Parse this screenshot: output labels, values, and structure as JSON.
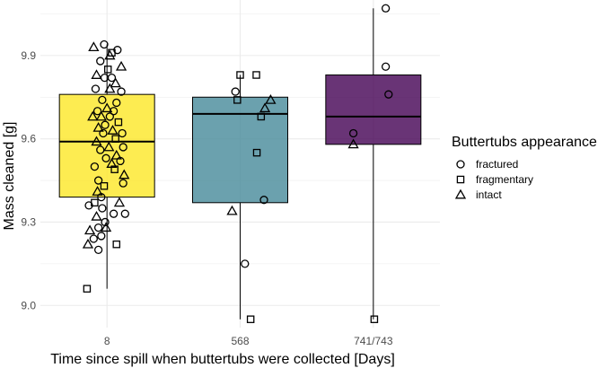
{
  "chart_data": {
    "type": "box",
    "title": "",
    "xlabel": "Time since spill when buttertubs were collected [Days]",
    "ylabel": "Mass cleaned [g]",
    "ylim": [
      8.92,
      10.1
    ],
    "y_ticks": [
      9.0,
      9.3,
      9.6,
      9.9
    ],
    "y_tick_labels": [
      "9.0",
      "9.3",
      "9.6",
      "9.9"
    ],
    "grid": true,
    "legend": {
      "title": "Buttertubs appearance",
      "position": "right",
      "entries": [
        {
          "label": "fractured",
          "shape": "circle"
        },
        {
          "label": "fragmentary",
          "shape": "square"
        },
        {
          "label": "intact",
          "shape": "triangle"
        }
      ]
    },
    "categories": [
      "8",
      "568",
      "741/743"
    ],
    "boxes": [
      {
        "category": "8",
        "color": "#FDE725",
        "q1": 9.39,
        "median": 9.59,
        "q3": 9.76,
        "whisker_low": 9.06,
        "whisker_high": 9.94
      },
      {
        "category": "568",
        "color": "#46899A",
        "q1": 9.37,
        "median": 9.69,
        "q3": 9.75,
        "whisker_low": 8.95,
        "whisker_high": 9.83
      },
      {
        "category": "741/743",
        "color": "#440154",
        "q1": 9.58,
        "median": 9.68,
        "q3": 9.83,
        "whisker_low": 8.95,
        "whisker_high": 10.07
      }
    ],
    "points": [
      {
        "category": "8",
        "jitter": -0.06,
        "y": 9.94,
        "shape": "circle"
      },
      {
        "category": "8",
        "jitter": -0.28,
        "y": 9.93,
        "shape": "triangle"
      },
      {
        "category": "8",
        "jitter": 0.22,
        "y": 9.92,
        "shape": "circle"
      },
      {
        "category": "8",
        "jitter": 0.1,
        "y": 9.91,
        "shape": "square"
      },
      {
        "category": "8",
        "jitter": 0.06,
        "y": 9.9,
        "shape": "triangle"
      },
      {
        "category": "8",
        "jitter": 0.3,
        "y": 9.86,
        "shape": "triangle"
      },
      {
        "category": "8",
        "jitter": -0.14,
        "y": 9.88,
        "shape": "circle"
      },
      {
        "category": "8",
        "jitter": 0.02,
        "y": 9.85,
        "shape": "square"
      },
      {
        "category": "8",
        "jitter": -0.22,
        "y": 9.83,
        "shape": "triangle"
      },
      {
        "category": "8",
        "jitter": -0.24,
        "y": 9.78,
        "shape": "circle"
      },
      {
        "category": "8",
        "jitter": 0.06,
        "y": 9.78,
        "shape": "triangle"
      },
      {
        "category": "8",
        "jitter": 0.1,
        "y": 9.82,
        "shape": "circle"
      },
      {
        "category": "8",
        "jitter": -0.05,
        "y": 9.82,
        "shape": "circle"
      },
      {
        "category": "8",
        "jitter": 0.18,
        "y": 9.8,
        "shape": "triangle"
      },
      {
        "category": "8",
        "jitter": 0.3,
        "y": 9.77,
        "shape": "circle"
      },
      {
        "category": "8",
        "jitter": -0.1,
        "y": 9.74,
        "shape": "circle"
      },
      {
        "category": "8",
        "jitter": 0.2,
        "y": 9.73,
        "shape": "circle"
      },
      {
        "category": "8",
        "jitter": -0.2,
        "y": 9.7,
        "shape": "circle"
      },
      {
        "category": "8",
        "jitter": 0.0,
        "y": 9.71,
        "shape": "triangle"
      },
      {
        "category": "8",
        "jitter": 0.14,
        "y": 9.7,
        "shape": "circle"
      },
      {
        "category": "8",
        "jitter": -0.3,
        "y": 9.68,
        "shape": "triangle"
      },
      {
        "category": "8",
        "jitter": -0.12,
        "y": 9.68,
        "shape": "triangle"
      },
      {
        "category": "8",
        "jitter": 0.06,
        "y": 9.68,
        "shape": "circle"
      },
      {
        "category": "8",
        "jitter": -0.04,
        "y": 9.65,
        "shape": "circle"
      },
      {
        "category": "8",
        "jitter": -0.18,
        "y": 9.64,
        "shape": "triangle"
      },
      {
        "category": "8",
        "jitter": 0.24,
        "y": 9.66,
        "shape": "square"
      },
      {
        "category": "8",
        "jitter": 0.32,
        "y": 9.62,
        "shape": "circle"
      },
      {
        "category": "8",
        "jitter": 0.12,
        "y": 9.63,
        "shape": "triangle"
      },
      {
        "category": "8",
        "jitter": -0.08,
        "y": 9.62,
        "shape": "circle"
      },
      {
        "category": "8",
        "jitter": 0.18,
        "y": 9.6,
        "shape": "square"
      },
      {
        "category": "8",
        "jitter": -0.22,
        "y": 9.59,
        "shape": "triangle"
      },
      {
        "category": "8",
        "jitter": 0.34,
        "y": 9.57,
        "shape": "circle"
      },
      {
        "category": "8",
        "jitter": 0.04,
        "y": 9.57,
        "shape": "triangle"
      },
      {
        "category": "8",
        "jitter": -0.14,
        "y": 9.56,
        "shape": "circle"
      },
      {
        "category": "8",
        "jitter": 0.2,
        "y": 9.54,
        "shape": "triangle"
      },
      {
        "category": "8",
        "jitter": -0.02,
        "y": 9.53,
        "shape": "circle"
      },
      {
        "category": "8",
        "jitter": 0.28,
        "y": 9.52,
        "shape": "circle"
      },
      {
        "category": "8",
        "jitter": 0.1,
        "y": 9.51,
        "shape": "triangle"
      },
      {
        "category": "8",
        "jitter": -0.26,
        "y": 9.5,
        "shape": "circle"
      },
      {
        "category": "8",
        "jitter": 0.16,
        "y": 9.49,
        "shape": "square"
      },
      {
        "category": "8",
        "jitter": 0.36,
        "y": 9.47,
        "shape": "triangle"
      },
      {
        "category": "8",
        "jitter": -0.18,
        "y": 9.45,
        "shape": "circle"
      },
      {
        "category": "8",
        "jitter": 0.34,
        "y": 9.44,
        "shape": "circle"
      },
      {
        "category": "8",
        "jitter": -0.06,
        "y": 9.43,
        "shape": "square"
      },
      {
        "category": "8",
        "jitter": -0.2,
        "y": 9.41,
        "shape": "triangle"
      },
      {
        "category": "8",
        "jitter": -0.12,
        "y": 9.39,
        "shape": "circle"
      },
      {
        "category": "8",
        "jitter": -0.26,
        "y": 9.37,
        "shape": "square"
      },
      {
        "category": "8",
        "jitter": 0.26,
        "y": 9.37,
        "shape": "triangle"
      },
      {
        "category": "8",
        "jitter": -0.38,
        "y": 9.36,
        "shape": "circle"
      },
      {
        "category": "8",
        "jitter": -0.1,
        "y": 9.35,
        "shape": "circle"
      },
      {
        "category": "8",
        "jitter": 0.38,
        "y": 9.33,
        "shape": "circle"
      },
      {
        "category": "8",
        "jitter": 0.14,
        "y": 9.33,
        "shape": "circle"
      },
      {
        "category": "8",
        "jitter": -0.22,
        "y": 9.32,
        "shape": "triangle"
      },
      {
        "category": "8",
        "jitter": -0.04,
        "y": 9.3,
        "shape": "circle"
      },
      {
        "category": "8",
        "jitter": -0.18,
        "y": 9.28,
        "shape": "circle"
      },
      {
        "category": "8",
        "jitter": -0.02,
        "y": 9.28,
        "shape": "triangle"
      },
      {
        "category": "8",
        "jitter": -0.36,
        "y": 9.27,
        "shape": "triangle"
      },
      {
        "category": "8",
        "jitter": -0.28,
        "y": 9.24,
        "shape": "circle"
      },
      {
        "category": "8",
        "jitter": -0.12,
        "y": 9.25,
        "shape": "circle"
      },
      {
        "category": "8",
        "jitter": -0.4,
        "y": 9.22,
        "shape": "triangle"
      },
      {
        "category": "8",
        "jitter": 0.2,
        "y": 9.22,
        "shape": "square"
      },
      {
        "category": "8",
        "jitter": -0.18,
        "y": 9.2,
        "shape": "circle"
      },
      {
        "category": "8",
        "jitter": -0.42,
        "y": 9.06,
        "shape": "square"
      },
      {
        "category": "568",
        "jitter": 0.0,
        "y": 9.83,
        "shape": "square"
      },
      {
        "category": "568",
        "jitter": 0.34,
        "y": 9.83,
        "shape": "square"
      },
      {
        "category": "568",
        "jitter": -0.1,
        "y": 9.77,
        "shape": "circle"
      },
      {
        "category": "568",
        "jitter": -0.06,
        "y": 9.74,
        "shape": "square"
      },
      {
        "category": "568",
        "jitter": 0.64,
        "y": 9.74,
        "shape": "triangle"
      },
      {
        "category": "568",
        "jitter": 0.52,
        "y": 9.71,
        "shape": "triangle"
      },
      {
        "category": "568",
        "jitter": 0.44,
        "y": 9.68,
        "shape": "square"
      },
      {
        "category": "568",
        "jitter": 0.35,
        "y": 9.55,
        "shape": "square"
      },
      {
        "category": "568",
        "jitter": 0.5,
        "y": 9.38,
        "shape": "circle"
      },
      {
        "category": "568",
        "jitter": -0.17,
        "y": 9.34,
        "shape": "triangle"
      },
      {
        "category": "568",
        "jitter": 0.1,
        "y": 9.15,
        "shape": "circle"
      },
      {
        "category": "568",
        "jitter": 0.22,
        "y": 8.95,
        "shape": "square"
      },
      {
        "category": "741/743",
        "jitter": 0.26,
        "y": 10.07,
        "shape": "circle"
      },
      {
        "category": "741/743",
        "jitter": 0.26,
        "y": 9.86,
        "shape": "circle"
      },
      {
        "category": "741/743",
        "jitter": 0.32,
        "y": 9.76,
        "shape": "circle"
      },
      {
        "category": "741/743",
        "jitter": -0.42,
        "y": 9.62,
        "shape": "circle"
      },
      {
        "category": "741/743",
        "jitter": -0.42,
        "y": 9.58,
        "shape": "triangle"
      },
      {
        "category": "741/743",
        "jitter": 0.02,
        "y": 8.95,
        "shape": "square"
      }
    ]
  }
}
